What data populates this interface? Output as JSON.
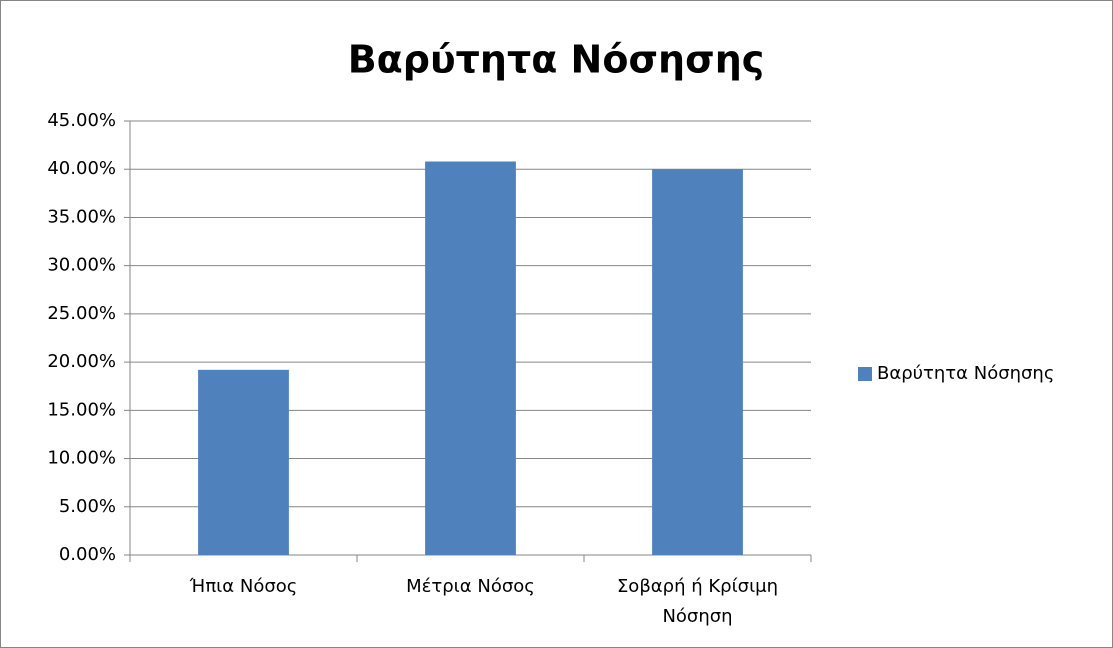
{
  "chart_data": {
    "type": "bar",
    "title": "Βαρύτητα Νόσησης",
    "categories": [
      "Ήπια Νόσος",
      "Μέτρια Νόσος",
      "Σοβαρή ή Κρίσιμη Νόσηση"
    ],
    "series": [
      {
        "name": "Βαρύτητα Νόσησης",
        "color": "#4f81bd",
        "values": [
          19.2,
          40.8,
          40.0
        ]
      }
    ],
    "ylim": [
      0,
      45
    ],
    "yticks": [
      {
        "value": 0,
        "label": "0.00%"
      },
      {
        "value": 5,
        "label": "5.00%"
      },
      {
        "value": 10,
        "label": "10.00%"
      },
      {
        "value": 15,
        "label": "15.00%"
      },
      {
        "value": 20,
        "label": "20.00%"
      },
      {
        "value": 25,
        "label": "25.00%"
      },
      {
        "value": 30,
        "label": "30.00%"
      },
      {
        "value": 35,
        "label": "35.00%"
      },
      {
        "value": 40,
        "label": "40.00%"
      },
      {
        "value": 45,
        "label": "45.00%"
      }
    ],
    "grid": true,
    "legend": "right"
  }
}
